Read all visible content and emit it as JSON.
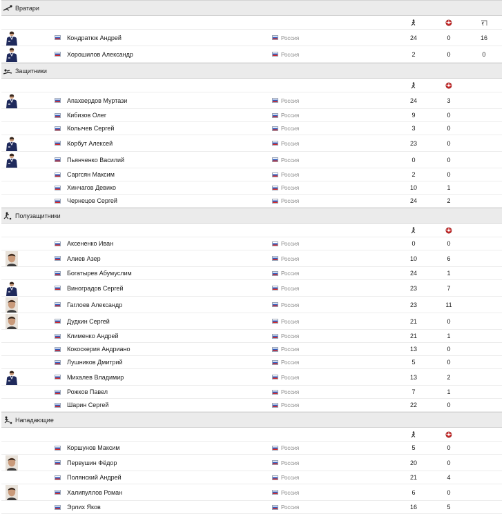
{
  "colors": {
    "section_bg": "#ebebeb",
    "divider": "#ececec",
    "kit_navy": "#1f2a5c",
    "flag_blue": "#2f5fc0",
    "flag_red": "#d62a2a"
  },
  "columns": {
    "games_icon": "games-played-icon",
    "goals_icon": "goals-ball-icon",
    "conceded_icon": "goals-conceded-icon"
  },
  "sections": [
    {
      "title": "Вратари",
      "icon": "goalkeeper-icon",
      "show_conceded": true,
      "players": [
        {
          "name": "Кондратюк Андрей",
          "country": "Россия",
          "games": "24",
          "goals": "0",
          "conceded": "16",
          "photo": "kit"
        },
        {
          "name": "Хорошилов Александр",
          "country": "Россия",
          "games": "2",
          "goals": "0",
          "conceded": "0",
          "photo": "kit"
        }
      ]
    },
    {
      "title": "Защитники",
      "icon": "defender-icon",
      "show_conceded": false,
      "players": [
        {
          "name": "Апахвердов Муртази",
          "country": "Россия",
          "games": "24",
          "goals": "3",
          "photo": "kit"
        },
        {
          "name": "Кибизов Олег",
          "country": "Россия",
          "games": "9",
          "goals": "0",
          "photo": ""
        },
        {
          "name": "Колычев Сергей",
          "country": "Россия",
          "games": "3",
          "goals": "0",
          "photo": ""
        },
        {
          "name": "Корбут Алексей",
          "country": "Россия",
          "games": "23",
          "goals": "0",
          "photo": "kit"
        },
        {
          "name": "Пьянченко Василий",
          "country": "Россия",
          "games": "0",
          "goals": "0",
          "photo": "kit"
        },
        {
          "name": "Саргсян Максим",
          "country": "Россия",
          "games": "2",
          "goals": "0",
          "photo": ""
        },
        {
          "name": "Хинчагов Девико",
          "country": "Россия",
          "games": "10",
          "goals": "1",
          "photo": ""
        },
        {
          "name": "Чернецов Сергей",
          "country": "Россия",
          "games": "24",
          "goals": "2",
          "photo": ""
        }
      ]
    },
    {
      "title": "Полузащитники",
      "icon": "midfielder-icon",
      "show_conceded": false,
      "players": [
        {
          "name": "Аксененко Иван",
          "country": "Россия",
          "games": "0",
          "goals": "0",
          "photo": ""
        },
        {
          "name": "Алиев Азер",
          "country": "Россия",
          "games": "10",
          "goals": "6",
          "photo": "face"
        },
        {
          "name": "Богатырев Абумуслим",
          "country": "Россия",
          "games": "24",
          "goals": "1",
          "photo": ""
        },
        {
          "name": "Виноградов Сергей",
          "country": "Россия",
          "games": "23",
          "goals": "7",
          "photo": "kit"
        },
        {
          "name": "Гаглоев Александр",
          "country": "Россия",
          "games": "23",
          "goals": "11",
          "photo": "face"
        },
        {
          "name": "Дудкин Сергей",
          "country": "Россия",
          "games": "21",
          "goals": "0",
          "photo": "face"
        },
        {
          "name": "Клименко Андрей",
          "country": "Россия",
          "games": "21",
          "goals": "1",
          "photo": ""
        },
        {
          "name": "Кокоскерия Андриано",
          "country": "Россия",
          "games": "13",
          "goals": "0",
          "photo": ""
        },
        {
          "name": "Лушников Дмитрий",
          "country": "Россия",
          "games": "5",
          "goals": "0",
          "photo": ""
        },
        {
          "name": "Михалев Владимир",
          "country": "Россия",
          "games": "13",
          "goals": "2",
          "photo": "kit"
        },
        {
          "name": "Рожков Павел",
          "country": "Россия",
          "games": "7",
          "goals": "1",
          "photo": ""
        },
        {
          "name": "Шарин Сергей",
          "country": "Россия",
          "games": "22",
          "goals": "0",
          "photo": ""
        }
      ]
    },
    {
      "title": "Нападающие",
      "icon": "forward-icon",
      "show_conceded": false,
      "players": [
        {
          "name": "Коршунов Максим",
          "country": "Россия",
          "games": "5",
          "goals": "0",
          "photo": ""
        },
        {
          "name": "Первушин Фёдор",
          "country": "Россия",
          "games": "20",
          "goals": "0",
          "photo": "face"
        },
        {
          "name": "Полянский Андрей",
          "country": "Россия",
          "games": "21",
          "goals": "4",
          "photo": ""
        },
        {
          "name": "Халипуллов Роман",
          "country": "Россия",
          "games": "6",
          "goals": "0",
          "photo": "face"
        },
        {
          "name": "Эрлих Яков",
          "country": "Россия",
          "games": "16",
          "goals": "5",
          "photo": ""
        }
      ]
    }
  ]
}
